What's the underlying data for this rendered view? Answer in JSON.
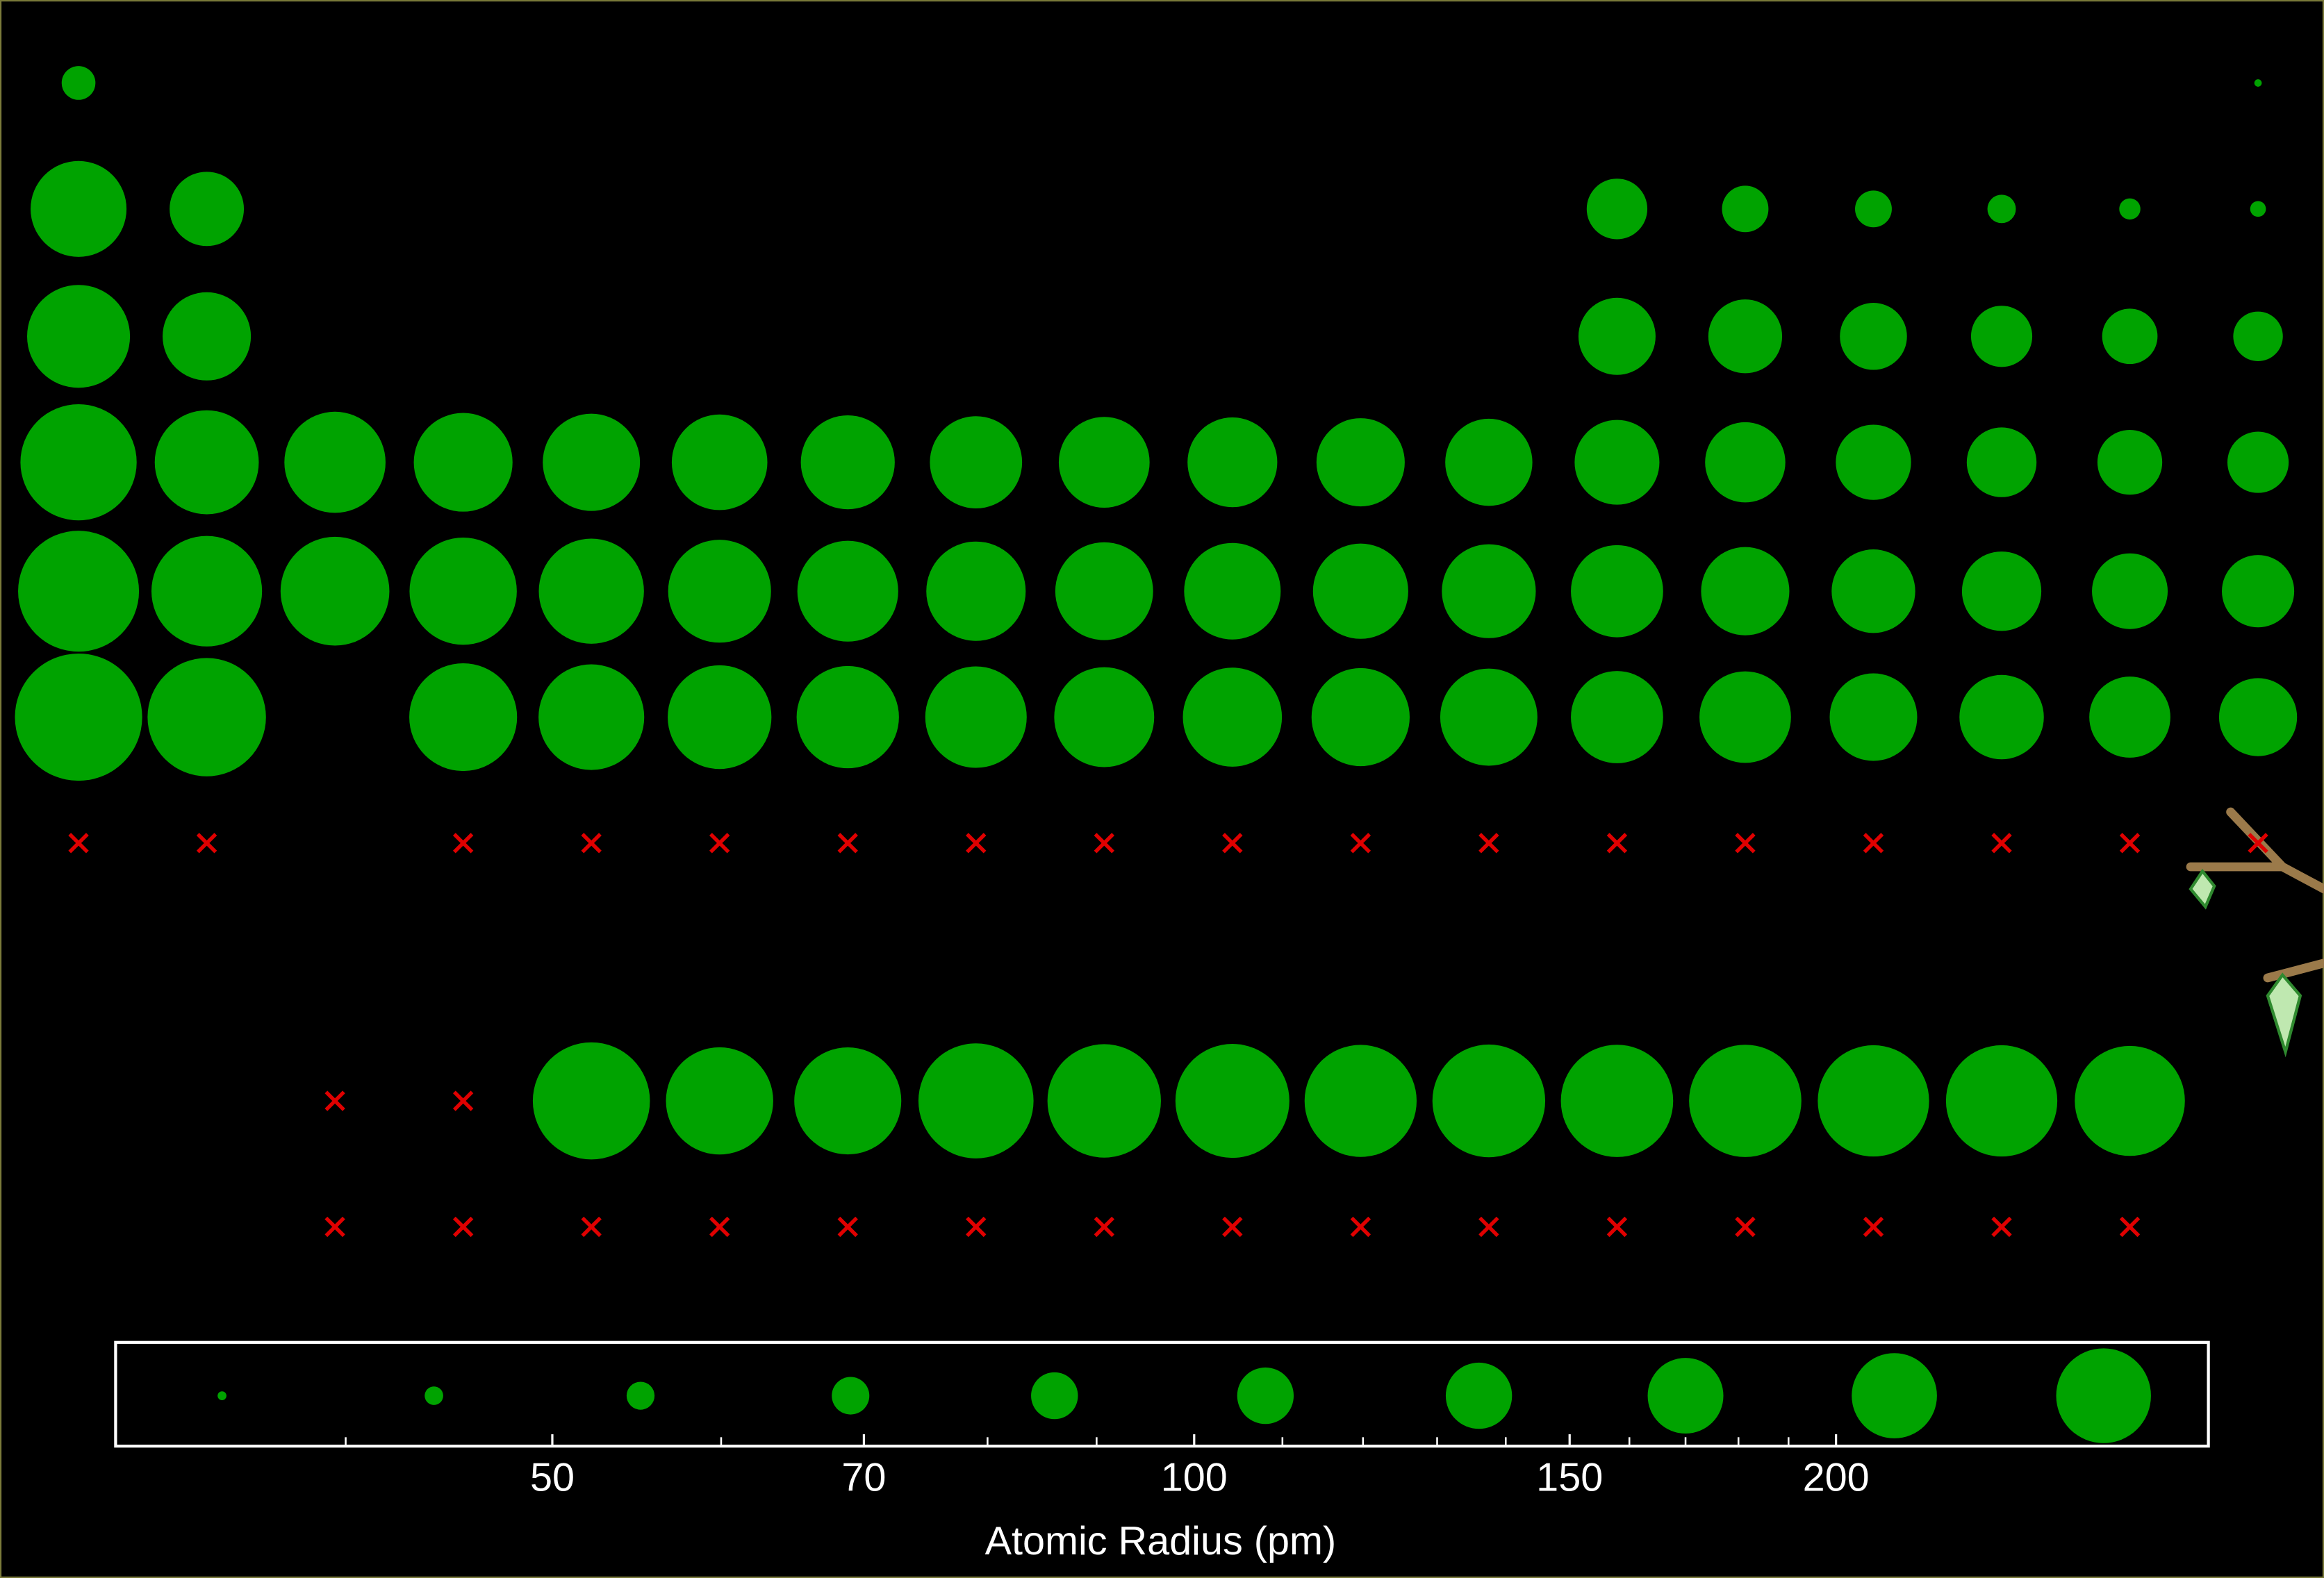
{
  "chart_data": {
    "type": "bubble",
    "x_label": "Atomic Radius (pm)",
    "log_scale": true,
    "color": "#00a300",
    "missing_color": "#e00000",
    "rows": [
      [
        53,
        31
      ],
      [
        167,
        112,
        87,
        67,
        56,
        48,
        42,
        38
      ],
      [
        190,
        145,
        118,
        111,
        98,
        88,
        79,
        71
      ],
      [
        243,
        194,
        184,
        176,
        171,
        166,
        161,
        156,
        152,
        149,
        145,
        142,
        136,
        125,
        114,
        103,
        94,
        88
      ],
      [
        265,
        219,
        212,
        206,
        198,
        190,
        183,
        178,
        173,
        169,
        165,
        161,
        156,
        145,
        133,
        123,
        115,
        108
      ],
      [
        298,
        253,
        208,
        200,
        193,
        188,
        185,
        180,
        177,
        174,
        171,
        156,
        154,
        143,
        135,
        127,
        120
      ],
      [
        null,
        null,
        null,
        null,
        null,
        null,
        null,
        null,
        null,
        null,
        null,
        null,
        null,
        null,
        null,
        null,
        null
      ],
      [
        null,
        null,
        247,
        206,
        205,
        238,
        231,
        233,
        225,
        228,
        226,
        226,
        222,
        222,
        217
      ],
      [
        null,
        null,
        null,
        null,
        null,
        null,
        null,
        null,
        null,
        null,
        null,
        null,
        null,
        null,
        null
      ]
    ],
    "size_legend": [
      35,
      44,
      55,
      69,
      86,
      108,
      136,
      170,
      213,
      267
    ],
    "xlim": [
      31.2,
      299
    ],
    "xticks": [
      50,
      70,
      100,
      150,
      200
    ],
    "xminor_ticks": [
      40,
      60,
      80,
      90,
      110,
      120,
      130,
      140,
      160,
      170,
      180,
      190
    ]
  }
}
